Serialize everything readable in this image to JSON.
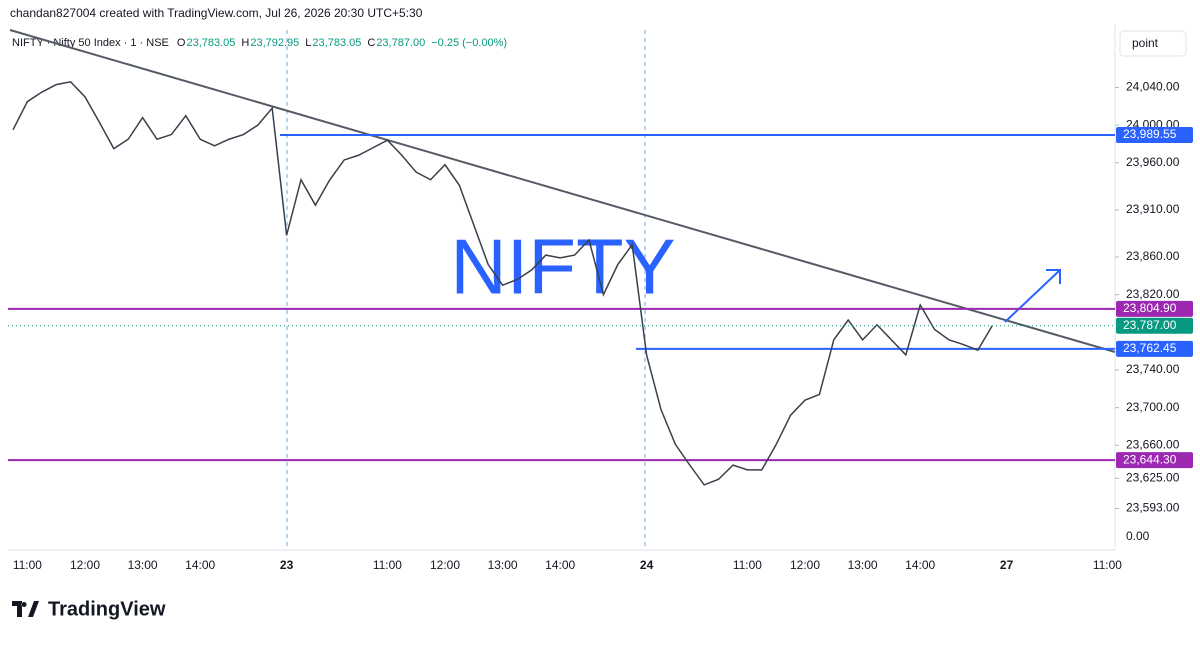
{
  "header": {
    "caption": "chandan827004 created with TradingView.com, Jul 26, 2026 20:30 UTC+5:30",
    "symbol": "NIFTY · Nifty 50 Index · 1 · NSE",
    "ohlc": [
      {
        "key": "O",
        "value": 23783.05,
        "label": "23,783.05"
      },
      {
        "key": "H",
        "value": 23792.95,
        "label": "23,792.95"
      },
      {
        "key": "L",
        "value": 23783.05,
        "label": "23,783.05"
      },
      {
        "key": "C",
        "value": 23787.0,
        "label": "23,787.00"
      }
    ],
    "change": "−0.25 (−0.00%)",
    "scale_mode": "point"
  },
  "chart_data": {
    "type": "line",
    "watermark": "NIFTY",
    "color": "#3a3f4b",
    "categories": [
      null,
      "11:00",
      null,
      null,
      null,
      "12:00",
      null,
      null,
      null,
      "13:00",
      null,
      null,
      null,
      "14:00",
      null,
      null,
      null,
      null,
      null,
      "23",
      null,
      null,
      null,
      null,
      null,
      null,
      "11:00",
      null,
      null,
      null,
      "12:00",
      null,
      null,
      null,
      "13:00",
      null,
      null,
      null,
      "14:00",
      null,
      null,
      null,
      null,
      null,
      "24",
      null,
      null,
      null,
      null,
      null,
      null,
      "11:00",
      null,
      null,
      null,
      "12:00",
      null,
      null,
      null,
      "13:00",
      null,
      null,
      null,
      "14:00",
      null,
      null,
      null,
      null,
      null,
      "27",
      null,
      null,
      null,
      null,
      null,
      null,
      "11:00"
    ],
    "values": [
      23995,
      24025,
      24035,
      24043,
      24046,
      24030,
      24003,
      23975,
      23985,
      24008,
      23985,
      23990,
      24010,
      23985,
      23978,
      23985,
      23990,
      24000,
      24018,
      23883,
      23942,
      23915,
      23942,
      23963,
      23968,
      23976,
      23984,
      23968,
      23950,
      23942,
      23958,
      23936,
      23894,
      23852,
      23830,
      23836,
      23846,
      23862,
      23859,
      23862,
      23878,
      23820,
      23852,
      23873,
      23756,
      23698,
      23661,
      23639,
      23618,
      23624,
      23639,
      23634,
      23634,
      23661,
      23692,
      23708,
      23714,
      23772,
      23793,
      23772,
      23788,
      23772,
      23756,
      23809,
      23783,
      23772,
      23767,
      23761,
      23787,
      null,
      null,
      null,
      null,
      null,
      null,
      null,
      null
    ],
    "ylim": [
      23551,
      24101
    ],
    "yticks": [
      {
        "value": 24040,
        "label": "24,040.00"
      },
      {
        "value": 24000,
        "label": "24,000.00"
      },
      {
        "value": 23960,
        "label": "23,960.00"
      },
      {
        "value": 23910,
        "label": "23,910.00"
      },
      {
        "value": 23860,
        "label": "23,860.00"
      },
      {
        "value": 23820,
        "label": "23,820.00"
      },
      {
        "value": 23740,
        "label": "23,740.00"
      },
      {
        "value": 23700,
        "label": "23,700.00"
      },
      {
        "value": 23660,
        "label": "23,660.00"
      },
      {
        "value": 23625,
        "label": "23,625.00"
      },
      {
        "value": 23593,
        "label": "23,593.00"
      }
    ],
    "scale_footer": "0.00",
    "levels": [
      {
        "value": 23989.55,
        "label": "23,989.55",
        "color": "#2962ff"
      },
      {
        "value": 23804.9,
        "label": "23,804.90",
        "color": "#9c27b0"
      },
      {
        "value": 23762.45,
        "label": "23,762.45",
        "color": "#2962ff"
      },
      {
        "value": 23644.3,
        "label": "23,644.30",
        "color": "#9c27b0"
      }
    ],
    "last_price": {
      "value": 23787.0,
      "label": "23,787.00",
      "color": "#089981"
    }
  },
  "footer": {
    "logo": "TradingView"
  }
}
